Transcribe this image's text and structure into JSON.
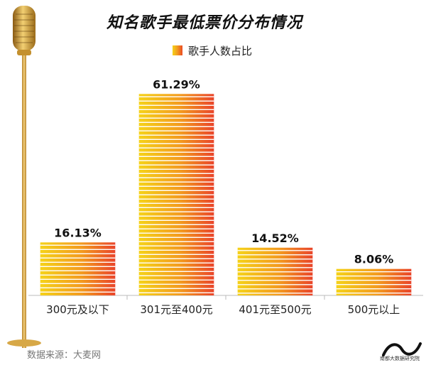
{
  "colors": {
    "bar_top": "#f5d21a",
    "bar_mid": "#f39b1f",
    "bar_end": "#e9452a",
    "pole": "#d8a23a",
    "baseline": "#bbbbbb"
  },
  "icons": {
    "microphone": "microphone-icon",
    "logo": "brand-logo-icon"
  },
  "source": "数据来源：大麦网",
  "logo_text": "南都大数据研究院",
  "chart_data": {
    "type": "bar",
    "title": "知名歌手最低票价分布情况",
    "xlabel": "",
    "ylabel": "",
    "ylim": [
      0,
      70
    ],
    "grid": false,
    "legend": {
      "position": "top-center"
    },
    "categories": [
      "300元及以下",
      "301元至400元",
      "401元至500元",
      "500元以上"
    ],
    "series": [
      {
        "name": "歌手人数占比",
        "values": [
          16.13,
          61.29,
          14.52,
          8.06
        ],
        "labels": [
          "16.13%",
          "61.29%",
          "14.52%",
          "8.06%"
        ]
      }
    ]
  }
}
